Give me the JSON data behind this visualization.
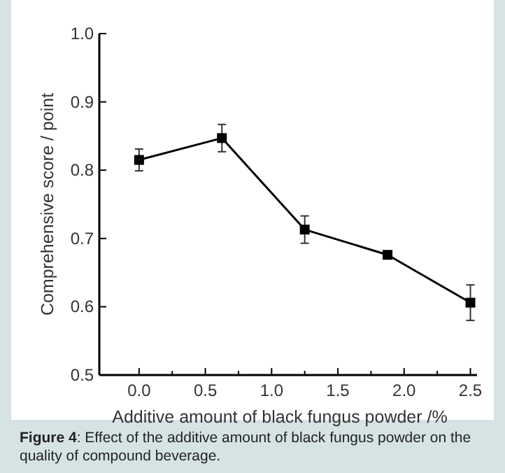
{
  "chart_data": {
    "type": "line",
    "xlabel": "Additive amount of black fungus powder /%",
    "ylabel": "Comprehensive score / point",
    "x": [
      0,
      0.625,
      1.25,
      1.875,
      2.5
    ],
    "series": [
      {
        "color": "#000000",
        "values": [
          0.815,
          0.847,
          0.713,
          0.676,
          0.606
        ],
        "errors": [
          0.016,
          0.02,
          0.02,
          0.005,
          0.026
        ]
      }
    ],
    "marker": "square",
    "line_style": "solid",
    "grid": false,
    "xlim": [
      -0.3,
      2.55
    ],
    "xticks": [
      {
        "value": 0,
        "label": "0.0"
      },
      {
        "value": 0.25,
        "label": null
      },
      {
        "value": 0.5,
        "label": "0.5"
      },
      {
        "value": 0.75,
        "label": null
      },
      {
        "value": 1,
        "label": "1.0"
      },
      {
        "value": 1.25,
        "label": null
      },
      {
        "value": 1.5,
        "label": "1.5"
      },
      {
        "value": 1.75,
        "label": null
      },
      {
        "value": 2,
        "label": "2.0"
      },
      {
        "value": 2.25,
        "label": null
      },
      {
        "value": 2.5,
        "label": "2.5"
      }
    ],
    "ylim": [
      0.5,
      1.0
    ],
    "yticks": [
      {
        "value": 0.5,
        "label": "0.5"
      },
      {
        "value": 0.6,
        "label": "0.6"
      },
      {
        "value": 0.7,
        "label": "0.7"
      },
      {
        "value": 0.8,
        "label": "0.8"
      },
      {
        "value": 0.9,
        "label": "0.9"
      },
      {
        "value": 1.0,
        "label": "1.0"
      }
    ],
    "annotations": [
      "Figure 4: Effect of the additive amount of black fungus powder on the quality of compound beverage."
    ]
  }
}
